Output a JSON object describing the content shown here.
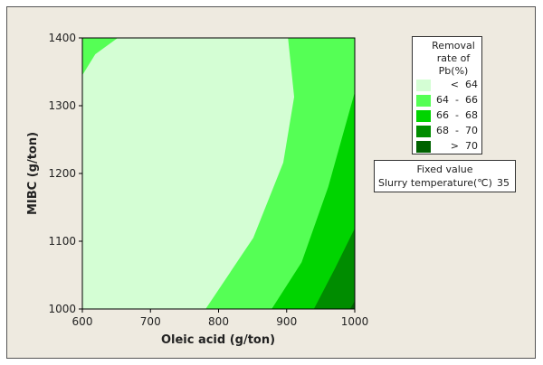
{
  "chart_data": {
    "type": "contour",
    "xlabel": "Oleic acid (g/ton)",
    "ylabel": "MIBC (g/ton)",
    "xlim": [
      600,
      1000
    ],
    "ylim": [
      1000,
      1400
    ],
    "xticks": [
      "600",
      "700",
      "800",
      "900",
      "1000"
    ],
    "yticks": [
      "1000",
      "1100",
      "1200",
      "1300",
      "1400"
    ],
    "legend": {
      "title": [
        "Removal",
        "rate of",
        "Pb(%)"
      ],
      "placement": "right",
      "levels": [
        {
          "label": "<  64",
          "color": "#d4fed4"
        },
        {
          "label": "64  -  66",
          "color": "#55ff55"
        },
        {
          "label": "66  -  68",
          "color": "#00d400"
        },
        {
          "label": "68  -  70",
          "color": "#008c00"
        },
        {
          "label": ">  70",
          "color": "#006200"
        }
      ]
    },
    "fixed_value": {
      "title": "Fixed value",
      "name": "Slurry temperature(℃)",
      "value": "35"
    },
    "regions": [
      {
        "level": "64 - 66",
        "color": "#55ff55",
        "points": [
          [
            600,
            1000
          ],
          [
            1000,
            1000
          ],
          [
            1000,
            1400
          ],
          [
            600,
            1400
          ]
        ]
      },
      {
        "level": "< 64",
        "color": "#d4fed4",
        "points": [
          [
            600,
            1345
          ],
          [
            600,
            1000
          ],
          [
            781,
            1000
          ],
          [
            851,
            1105
          ],
          [
            895,
            1216
          ],
          [
            911,
            1313
          ],
          [
            902,
            1400
          ],
          [
            652,
            1400
          ],
          [
            619,
            1376
          ]
        ]
      },
      {
        "level": "66 - 68",
        "color": "#00d400",
        "points": [
          [
            878,
            1000
          ],
          [
            922,
            1069
          ],
          [
            961,
            1180
          ],
          [
            1000,
            1320
          ],
          [
            1000,
            1000
          ]
        ]
      },
      {
        "level": "68 - 70",
        "color": "#008c00",
        "points": [
          [
            940,
            1000
          ],
          [
            971,
            1060
          ],
          [
            1000,
            1119
          ],
          [
            1000,
            1000
          ]
        ]
      },
      {
        "level": "> 70",
        "color": "#006200",
        "points": [
          [
            993,
            1000
          ],
          [
            1000,
            1012
          ],
          [
            1000,
            1000
          ]
        ]
      }
    ]
  }
}
